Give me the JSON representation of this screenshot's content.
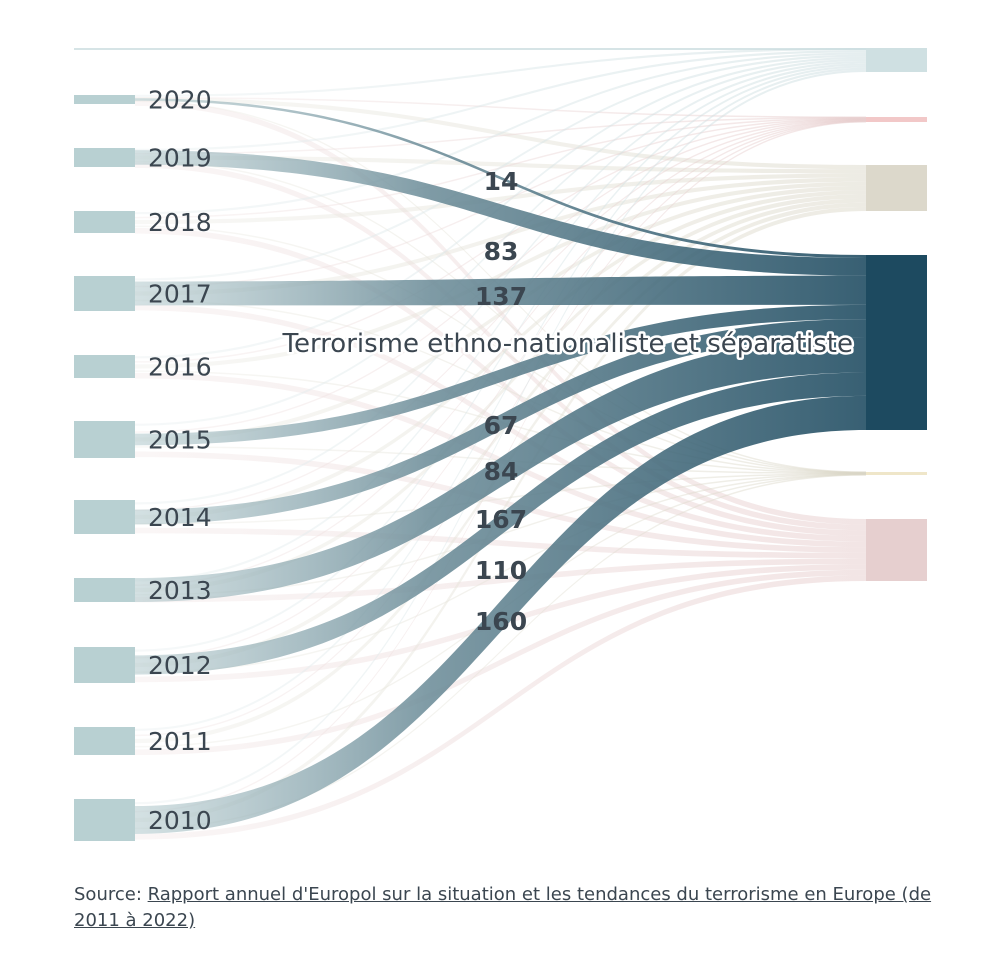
{
  "chart_data": {
    "type": "sankey",
    "title": "",
    "highlighted_category": "Terrorisme ethno-nationaliste et séparatiste",
    "years": [
      "2020",
      "2019",
      "2018",
      "2017",
      "2016",
      "2015",
      "2014",
      "2013",
      "2012",
      "2011",
      "2010"
    ],
    "highlighted_values": [
      14,
      83,
      null,
      137,
      null,
      67,
      84,
      167,
      110,
      null,
      160
    ],
    "value_labels": [
      "14",
      "83",
      "137",
      "67",
      "84",
      "167",
      "110",
      "160"
    ],
    "colors": {
      "highlight": "#1d4a60",
      "year_node": "#b8d0d2",
      "label": "#3b4650",
      "node_blue": "#cfe0e2",
      "node_pink": "#f2c8c8",
      "node_beige": "#dcd8cb",
      "node_red": "#e6cfcf"
    }
  },
  "source": {
    "prefix": "Source: ",
    "link_text": "Rapport annuel d'Europol sur la situation et les tendances du terrorisme en Europe (de 2011 à 2022)"
  }
}
